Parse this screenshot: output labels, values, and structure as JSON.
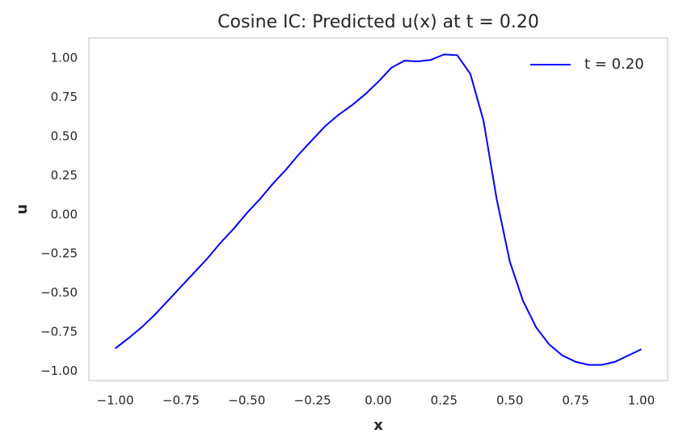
{
  "chart_data": {
    "type": "line",
    "title": "Cosine IC: Predicted u(x) at t = 0.20",
    "xlabel": "x",
    "ylabel": "u",
    "x": [
      -1.0,
      -0.95,
      -0.9,
      -0.85,
      -0.8,
      -0.75,
      -0.7,
      -0.65,
      -0.6,
      -0.55,
      -0.5,
      -0.45,
      -0.4,
      -0.35,
      -0.3,
      -0.25,
      -0.2,
      -0.15,
      -0.1,
      -0.05,
      0.0,
      0.05,
      0.1,
      0.15,
      0.2,
      0.25,
      0.3,
      0.35,
      0.4,
      0.45,
      0.5,
      0.55,
      0.6,
      0.65,
      0.7,
      0.75,
      0.8,
      0.85,
      0.9,
      0.95,
      1.0
    ],
    "series": [
      {
        "name": "t = 0.20",
        "color": "#0000ff",
        "values": [
          -0.855,
          -0.79,
          -0.72,
          -0.64,
          -0.55,
          -0.46,
          -0.37,
          -0.28,
          -0.18,
          -0.09,
          0.01,
          0.1,
          0.2,
          0.29,
          0.39,
          0.48,
          0.57,
          0.64,
          0.7,
          0.77,
          0.85,
          0.94,
          0.985,
          0.98,
          0.99,
          1.025,
          1.02,
          0.9,
          0.6,
          0.1,
          -0.3,
          -0.55,
          -0.72,
          -0.83,
          -0.9,
          -0.94,
          -0.96,
          -0.96,
          -0.94,
          -0.9,
          -0.86
        ]
      }
    ],
    "xlim": [
      -1.1,
      1.1
    ],
    "ylim": [
      -1.06,
      1.13
    ],
    "xticks": [
      {
        "value": -1,
        "label": "−1.00"
      },
      {
        "value": -0.75,
        "label": "−0.75"
      },
      {
        "value": -0.5,
        "label": "−0.50"
      },
      {
        "value": -0.25,
        "label": "−0.25"
      },
      {
        "value": 0,
        "label": "0.00"
      },
      {
        "value": 0.25,
        "label": "0.25"
      },
      {
        "value": 0.5,
        "label": "0.50"
      },
      {
        "value": 0.75,
        "label": "0.75"
      },
      {
        "value": 1,
        "label": "1.00"
      }
    ],
    "yticks": [
      {
        "value": -1,
        "label": "−1.00"
      },
      {
        "value": -0.75,
        "label": "−0.75"
      },
      {
        "value": -0.5,
        "label": "−0.50"
      },
      {
        "value": -0.25,
        "label": "−0.25"
      },
      {
        "value": 0,
        "label": "0.00"
      },
      {
        "value": 0.25,
        "label": "0.25"
      },
      {
        "value": 0.5,
        "label": "0.50"
      },
      {
        "value": 0.75,
        "label": "0.75"
      },
      {
        "value": 1,
        "label": "1.00"
      }
    ],
    "grid": false,
    "legend_loc": "upper right"
  }
}
